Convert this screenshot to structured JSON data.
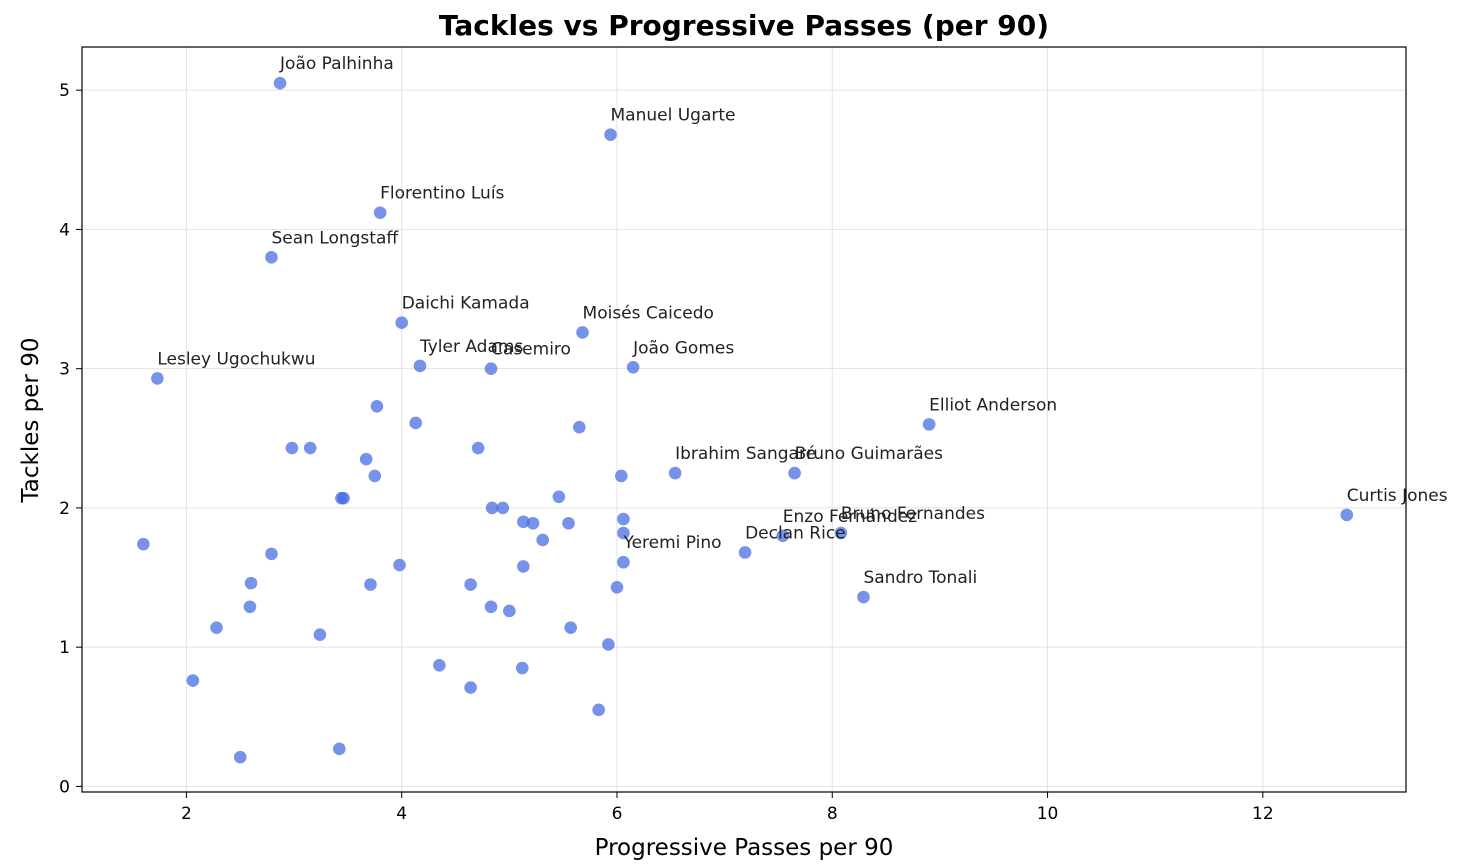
{
  "chart_data": {
    "type": "scatter",
    "title": "Tackles vs Progressive Passes (per 90)",
    "xlabel": "Progressive Passes per 90",
    "ylabel": "Tackles per 90",
    "xlim": [
      1.03,
      13.33
    ],
    "ylim": [
      -0.04,
      5.31
    ],
    "xticks": [
      2,
      4,
      6,
      8,
      10,
      12
    ],
    "yticks": [
      0,
      1,
      2,
      3,
      4,
      5
    ],
    "grid": true,
    "color": "#4169E1",
    "points": [
      {
        "x": 2.87,
        "y": 5.05,
        "label": "João Palhinha"
      },
      {
        "x": 5.94,
        "y": 4.68,
        "label": "Manuel Ugarte"
      },
      {
        "x": 3.8,
        "y": 4.12,
        "label": "Florentino Luís"
      },
      {
        "x": 2.79,
        "y": 3.8,
        "label": "Sean Longstaff"
      },
      {
        "x": 4.0,
        "y": 3.33,
        "label": "Daichi Kamada"
      },
      {
        "x": 5.68,
        "y": 3.26,
        "label": "Moisés Caicedo"
      },
      {
        "x": 4.17,
        "y": 3.02,
        "label": "Tyler Adams"
      },
      {
        "x": 4.83,
        "y": 3.0,
        "label": "Casemiro"
      },
      {
        "x": 6.15,
        "y": 3.01,
        "label": "João Gomes"
      },
      {
        "x": 1.73,
        "y": 2.93,
        "label": "Lesley Ugochukwu"
      },
      {
        "x": 8.9,
        "y": 2.6,
        "label": "Elliot Anderson"
      },
      {
        "x": 6.54,
        "y": 2.25,
        "label": "Ibrahim Sangaré"
      },
      {
        "x": 7.65,
        "y": 2.25,
        "label": "Bruno Guimarães"
      },
      {
        "x": 12.78,
        "y": 1.95,
        "label": "Curtis Jones"
      },
      {
        "x": 8.08,
        "y": 1.82,
        "label": "Bruno Fernandes"
      },
      {
        "x": 7.54,
        "y": 1.8,
        "label": "Enzo Fernández"
      },
      {
        "x": 7.19,
        "y": 1.68,
        "label": "Declan Rice"
      },
      {
        "x": 6.06,
        "y": 1.61,
        "label": "Yeremi Pino"
      },
      {
        "x": 8.29,
        "y": 1.36,
        "label": "Sandro Tonali"
      },
      {
        "x": 3.77,
        "y": 2.73,
        "label": ""
      },
      {
        "x": 4.13,
        "y": 2.61,
        "label": ""
      },
      {
        "x": 5.65,
        "y": 2.58,
        "label": ""
      },
      {
        "x": 2.98,
        "y": 2.43,
        "label": ""
      },
      {
        "x": 3.15,
        "y": 2.43,
        "label": ""
      },
      {
        "x": 4.71,
        "y": 2.43,
        "label": ""
      },
      {
        "x": 3.67,
        "y": 2.35,
        "label": ""
      },
      {
        "x": 3.75,
        "y": 2.23,
        "label": ""
      },
      {
        "x": 6.04,
        "y": 2.23,
        "label": ""
      },
      {
        "x": 3.44,
        "y": 2.07,
        "label": ""
      },
      {
        "x": 3.46,
        "y": 2.07,
        "label": ""
      },
      {
        "x": 5.46,
        "y": 2.08,
        "label": ""
      },
      {
        "x": 4.84,
        "y": 2.0,
        "label": ""
      },
      {
        "x": 4.94,
        "y": 2.0,
        "label": ""
      },
      {
        "x": 5.13,
        "y": 1.9,
        "label": ""
      },
      {
        "x": 5.22,
        "y": 1.89,
        "label": ""
      },
      {
        "x": 5.55,
        "y": 1.89,
        "label": ""
      },
      {
        "x": 6.06,
        "y": 1.92,
        "label": ""
      },
      {
        "x": 6.06,
        "y": 1.82,
        "label": ""
      },
      {
        "x": 5.31,
        "y": 1.77,
        "label": ""
      },
      {
        "x": 1.6,
        "y": 1.74,
        "label": ""
      },
      {
        "x": 2.79,
        "y": 1.67,
        "label": ""
      },
      {
        "x": 3.98,
        "y": 1.59,
        "label": ""
      },
      {
        "x": 5.13,
        "y": 1.58,
        "label": ""
      },
      {
        "x": 2.6,
        "y": 1.46,
        "label": ""
      },
      {
        "x": 3.71,
        "y": 1.45,
        "label": ""
      },
      {
        "x": 4.64,
        "y": 1.45,
        "label": ""
      },
      {
        "x": 6.0,
        "y": 1.43,
        "label": ""
      },
      {
        "x": 2.59,
        "y": 1.29,
        "label": ""
      },
      {
        "x": 4.83,
        "y": 1.29,
        "label": ""
      },
      {
        "x": 5.0,
        "y": 1.26,
        "label": ""
      },
      {
        "x": 2.28,
        "y": 1.14,
        "label": ""
      },
      {
        "x": 5.57,
        "y": 1.14,
        "label": ""
      },
      {
        "x": 3.24,
        "y": 1.09,
        "label": ""
      },
      {
        "x": 5.92,
        "y": 1.02,
        "label": ""
      },
      {
        "x": 4.35,
        "y": 0.87,
        "label": ""
      },
      {
        "x": 5.12,
        "y": 0.85,
        "label": ""
      },
      {
        "x": 2.06,
        "y": 0.76,
        "label": ""
      },
      {
        "x": 4.64,
        "y": 0.71,
        "label": ""
      },
      {
        "x": 5.83,
        "y": 0.55,
        "label": ""
      },
      {
        "x": 3.42,
        "y": 0.27,
        "label": ""
      },
      {
        "x": 2.5,
        "y": 0.21,
        "label": ""
      }
    ]
  }
}
